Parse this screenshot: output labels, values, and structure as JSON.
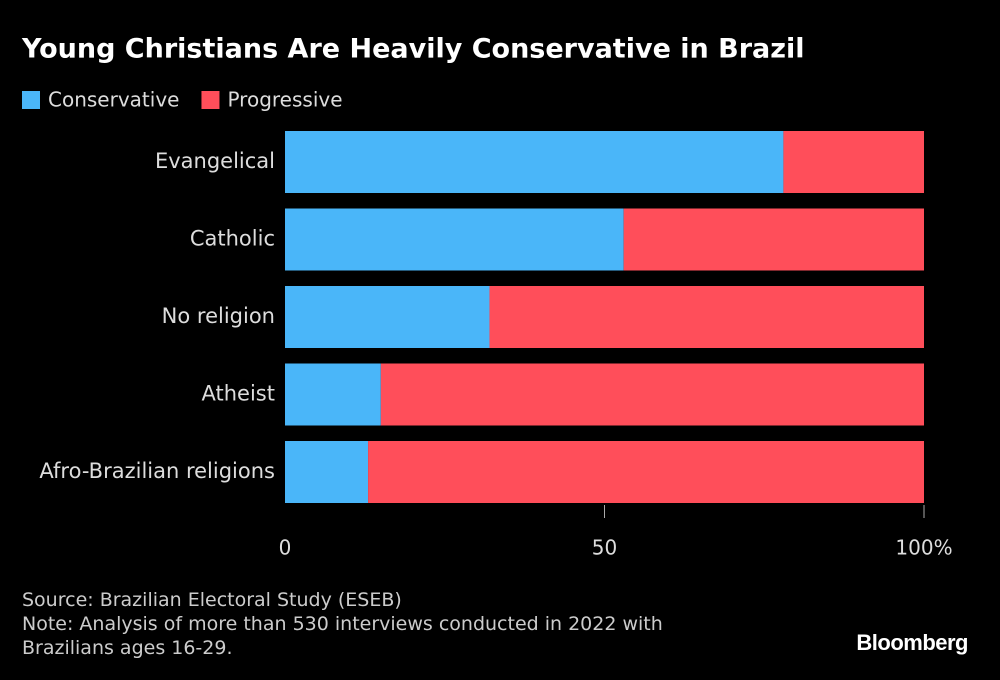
{
  "chart_data": {
    "type": "stacked-barh",
    "title": "Young Christians Are Heavily Conservative in Brazil",
    "categories": [
      "Evangelical",
      "Catholic",
      "No religion",
      "Atheist",
      "Afro-Brazilian religions"
    ],
    "series": [
      {
        "name": "Conservative",
        "color": "#4ab6f9",
        "values": [
          78,
          53,
          32,
          15,
          13
        ]
      },
      {
        "name": "Progressive",
        "color": "#ff4e5a",
        "values": [
          22,
          47,
          68,
          85,
          87
        ]
      }
    ],
    "xlim": [
      0,
      100
    ],
    "xticks": [
      0,
      50,
      {
        "value": 100,
        "label": "100%"
      }
    ],
    "legend": "top-left",
    "source": "Source: Brazilian Electoral Study (ESEB)",
    "note": "Note: Analysis of more than 530 interviews conducted in 2022 with Brazilians ages 16-29.",
    "brand": "Bloomberg"
  }
}
